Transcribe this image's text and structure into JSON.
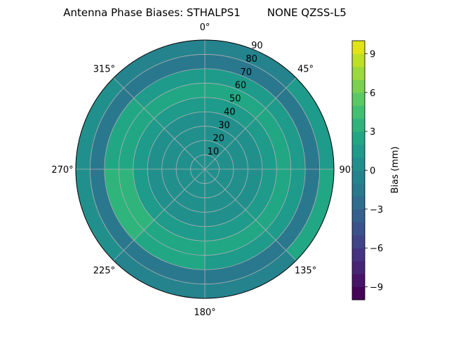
{
  "chart_data": {
    "type": "heatmap",
    "projection": "polar",
    "title": "Antenna Phase Biases: STHALPS1        NONE QZSS-L5",
    "theta_tick_labels": [
      "0°",
      "45°",
      "90°",
      "135°",
      "180°",
      "225°",
      "270°",
      "315°"
    ],
    "theta_direction": "clockwise",
    "theta_zero": "top",
    "r_tick_labels": [
      "10",
      "20",
      "30",
      "40",
      "50",
      "60",
      "70",
      "80",
      "90"
    ],
    "r_range": [
      0,
      90
    ],
    "grid": true,
    "zenith_bin_edges": [
      0,
      10,
      20,
      30,
      40,
      50,
      60,
      70,
      80,
      90
    ],
    "azimuth_bin_edges": [
      0,
      45,
      90,
      135,
      180,
      225,
      270,
      315,
      360
    ],
    "values": [
      [
        0.5,
        0.5,
        0.5,
        0.5,
        0.5,
        0.5,
        0.5,
        0.5
      ],
      [
        0.5,
        0.5,
        0.5,
        0.5,
        0.5,
        0.5,
        0.5,
        0.5
      ],
      [
        0.5,
        0.5,
        0.5,
        0.5,
        0.5,
        0.5,
        0.5,
        0.5
      ],
      [
        0.5,
        0.5,
        0.5,
        0.5,
        0.5,
        0.5,
        0.5,
        0.5
      ],
      [
        1.5,
        1.5,
        1.5,
        1.5,
        1.5,
        1.5,
        1.5,
        1.5
      ],
      [
        2.5,
        2.5,
        2.5,
        2.5,
        2.5,
        3.5,
        2.5,
        2.5
      ],
      [
        1.5,
        1.5,
        1.5,
        1.5,
        2.5,
        3.5,
        2.5,
        1.5
      ],
      [
        -1.5,
        -1.5,
        -1.5,
        -1.5,
        -1.5,
        -1.5,
        -1.5,
        -1.5
      ],
      [
        -0.5,
        1.5,
        2.5,
        -0.5,
        -0.5,
        0.5,
        0.5,
        -0.5
      ]
    ],
    "colormap": "viridis",
    "colorbar": {
      "label": "Bias (mm)",
      "range": [
        -10,
        10
      ],
      "level_step": 1,
      "tick_labels": [
        "−9",
        "−6",
        "−3",
        "0",
        "3",
        "6",
        "9"
      ],
      "tick_values": [
        -9,
        -6,
        -3,
        0,
        3,
        6,
        9
      ]
    }
  }
}
